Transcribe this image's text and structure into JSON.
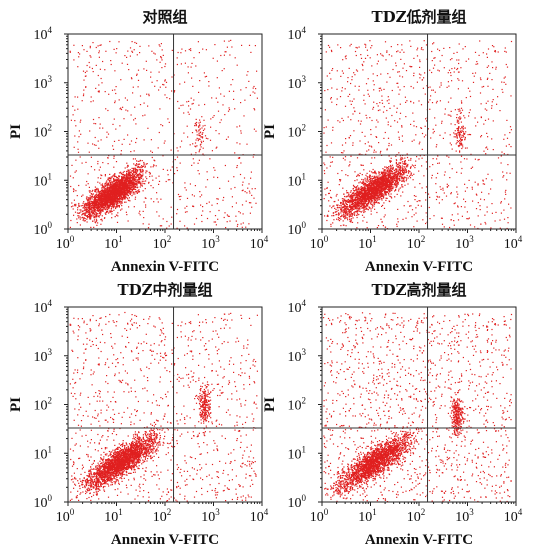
{
  "colors": {
    "dots": "#e02020",
    "frame": "#222222",
    "gate": "#333333"
  },
  "chart_data": [
    {
      "type": "scatter",
      "title": "对照组",
      "xlabel": "Annexin V-FITC",
      "ylabel": "PI",
      "xscale": "log",
      "yscale": "log",
      "xlim": [
        1,
        10000
      ],
      "ylim": [
        1,
        10000
      ],
      "x_ticks": [
        "10",
        "10",
        "10",
        "10",
        "10"
      ],
      "x_tick_exponents": [
        "0",
        "1",
        "2",
        "3",
        "4"
      ],
      "y_ticks": [
        "10",
        "10",
        "10",
        "10",
        "10"
      ],
      "y_tick_exponents": [
        "0",
        "1",
        "2",
        "3",
        "4"
      ],
      "gate": {
        "x": 150,
        "y": 33
      },
      "clusters": [
        {
          "name": "live",
          "x_range": [
            2,
            35
          ],
          "y_range": [
            2,
            15
          ],
          "points": 2600
        },
        {
          "name": "late apoptotic",
          "x_center": 500,
          "y_center": 85,
          "points": 60
        }
      ],
      "scattered_points": 700
    },
    {
      "type": "scatter",
      "title": "TDZ低剂量组",
      "xlabel": "Annexin V-FITC",
      "ylabel": "PI",
      "xscale": "log",
      "yscale": "log",
      "xlim": [
        1,
        10000
      ],
      "ylim": [
        1,
        10000
      ],
      "x_ticks": [
        "10",
        "10",
        "10",
        "10",
        "10"
      ],
      "x_tick_exponents": [
        "0",
        "1",
        "2",
        "3",
        "4"
      ],
      "y_ticks": [
        "10",
        "10",
        "10",
        "10",
        "10"
      ],
      "y_tick_exponents": [
        "0",
        "1",
        "2",
        "3",
        "4"
      ],
      "gate": {
        "x": 150,
        "y": 33
      },
      "clusters": [
        {
          "name": "live",
          "x_range": [
            2,
            60
          ],
          "y_range": [
            2,
            20
          ],
          "points": 2200
        },
        {
          "name": "late apoptotic",
          "x_center": 700,
          "y_center": 100,
          "points": 110
        }
      ],
      "scattered_points": 900
    },
    {
      "type": "scatter",
      "title": "TDZ中剂量组",
      "xlabel": "Annexin V-FITC",
      "ylabel": "PI",
      "xscale": "log",
      "yscale": "log",
      "xlim": [
        1,
        10000
      ],
      "ylim": [
        1,
        10000
      ],
      "x_ticks": [
        "10",
        "10",
        "10",
        "10",
        "10"
      ],
      "x_tick_exponents": [
        "0",
        "1",
        "2",
        "3",
        "4"
      ],
      "y_ticks": [
        "10",
        "10",
        "10",
        "10",
        "10"
      ],
      "y_tick_exponents": [
        "0",
        "1",
        "2",
        "3",
        "4"
      ],
      "gate": {
        "x": 150,
        "y": 33
      },
      "clusters": [
        {
          "name": "live",
          "x_range": [
            2,
            70
          ],
          "y_range": [
            2,
            22
          ],
          "points": 2300
        },
        {
          "name": "late apoptotic",
          "x_center": 650,
          "y_center": 100,
          "points": 220
        }
      ],
      "scattered_points": 1000
    },
    {
      "type": "scatter",
      "title": "TDZ高剂量组",
      "xlabel": "Annexin V-FITC",
      "ylabel": "PI",
      "xscale": "log",
      "yscale": "log",
      "xlim": [
        1,
        10000
      ],
      "ylim": [
        1,
        10000
      ],
      "x_ticks": [
        "10",
        "10",
        "10",
        "10",
        "10"
      ],
      "x_tick_exponents": [
        "0",
        "1",
        "2",
        "3",
        "4"
      ],
      "y_ticks": [
        "10",
        "10",
        "10",
        "10",
        "10"
      ],
      "y_tick_exponents": [
        "0",
        "1",
        "2",
        "3",
        "4"
      ],
      "gate": {
        "x": 150,
        "y": 33
      },
      "clusters": [
        {
          "name": "live",
          "x_range": [
            2,
            70
          ],
          "y_range": [
            2,
            22
          ],
          "points": 2000
        },
        {
          "name": "late apoptotic",
          "x_center": 600,
          "y_center": 60,
          "points": 260
        }
      ],
      "scattered_points": 1300
    }
  ]
}
